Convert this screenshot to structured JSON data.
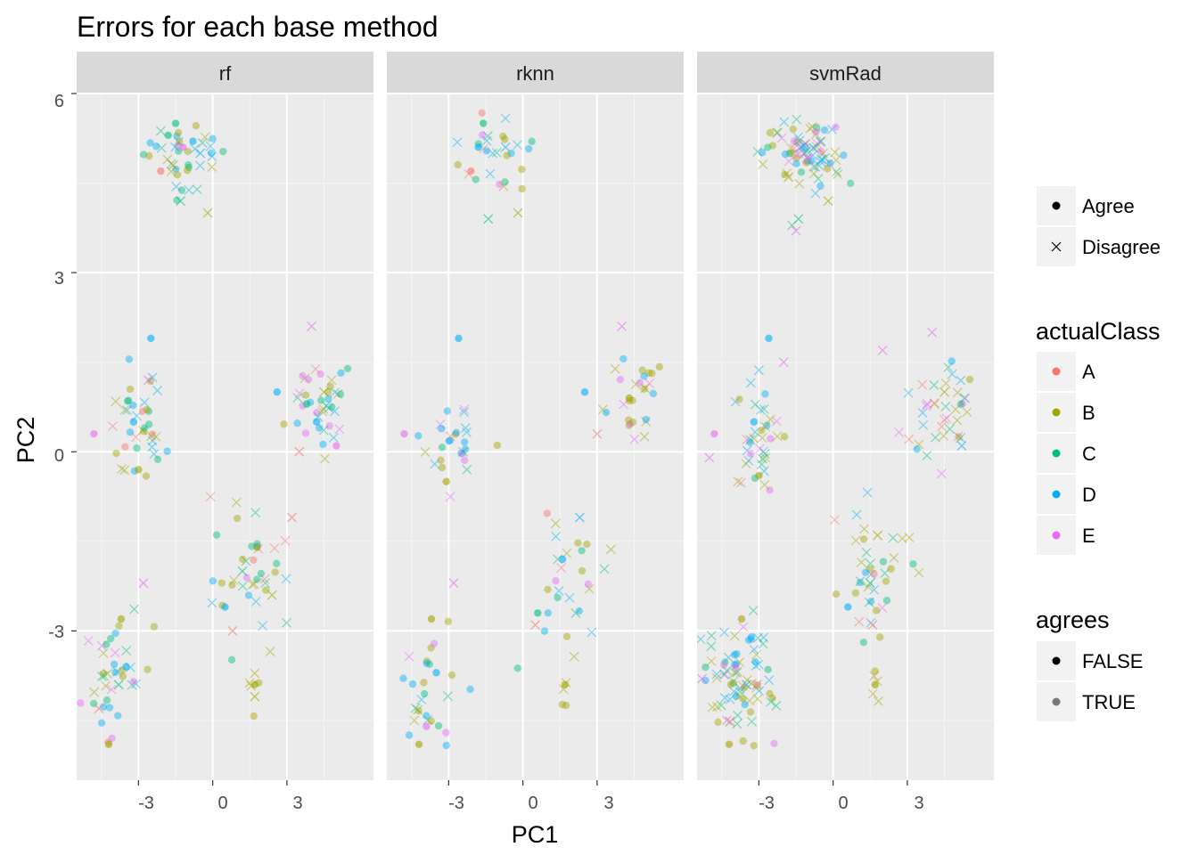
{
  "chart_data": {
    "type": "scatter",
    "title": "Errors for each base method",
    "xlabel": "PC1",
    "ylabel": "PC2",
    "xlim": [
      -5.5,
      6.5
    ],
    "ylim": [
      -5.5,
      6
    ],
    "x_ticks": [
      -3,
      0,
      3
    ],
    "x_tick_labels": [
      "-3",
      "0",
      "3"
    ],
    "y_ticks": [
      -3,
      0,
      3,
      6
    ],
    "y_tick_labels": [
      "-3",
      "0",
      "3",
      "6"
    ],
    "grid": true,
    "legend_position": "right",
    "facets": [
      "rf",
      "rknn",
      "svmRad"
    ],
    "legends": {
      "shape": {
        "title": "",
        "entries": [
          {
            "label": "Agree",
            "shape": "circle"
          },
          {
            "label": "Disagree",
            "shape": "cross"
          }
        ]
      },
      "actualClass": {
        "title": "actualClass",
        "entries": [
          {
            "label": "A",
            "color": "#F8766D"
          },
          {
            "label": "B",
            "color": "#A3A500"
          },
          {
            "label": "C",
            "color": "#00BF7D"
          },
          {
            "label": "D",
            "color": "#00B0F6"
          },
          {
            "label": "E",
            "color": "#E76BF3"
          }
        ]
      },
      "agrees": {
        "title": "agrees",
        "entries": [
          {
            "label": "FALSE",
            "alpha": 1.0
          },
          {
            "label": "TRUE",
            "alpha": 0.5
          }
        ]
      }
    },
    "clusters": [
      {
        "cx": -1.2,
        "cy": 5.0,
        "sx": 0.8,
        "sy": 0.3,
        "mix": {
          "A": 0.05,
          "B": 0.3,
          "C": 0.2,
          "D": 0.35,
          "E": 0.1
        }
      },
      {
        "cx": -3.0,
        "cy": 0.3,
        "sx": 0.6,
        "sy": 0.5,
        "mix": {
          "A": 0.05,
          "B": 0.4,
          "C": 0.15,
          "D": 0.3,
          "E": 0.1
        }
      },
      {
        "cx": 4.4,
        "cy": 0.8,
        "sx": 0.7,
        "sy": 0.4,
        "mix": {
          "A": 0.1,
          "B": 0.35,
          "C": 0.15,
          "D": 0.25,
          "E": 0.15
        }
      },
      {
        "cx": 1.6,
        "cy": -2.1,
        "sx": 0.8,
        "sy": 0.6,
        "mix": {
          "A": 0.1,
          "B": 0.3,
          "C": 0.3,
          "D": 0.25,
          "E": 0.05
        }
      },
      {
        "cx": -3.8,
        "cy": -3.8,
        "sx": 0.7,
        "sy": 0.5,
        "mix": {
          "A": 0.05,
          "B": 0.35,
          "C": 0.15,
          "D": 0.35,
          "E": 0.1
        }
      },
      {
        "cx": 1.7,
        "cy": -3.9,
        "sx": 0.1,
        "sy": 0.2,
        "mix": {
          "B": 1.0
        }
      }
    ],
    "series": [
      {
        "facet": "rf",
        "points": [
          {
            "x": -1.8,
            "y": 5.3,
            "class": "C",
            "shape": "Agree"
          },
          {
            "x": -1.5,
            "y": 5.5,
            "class": "C",
            "shape": "Agree"
          },
          {
            "x": -0.8,
            "y": 5.2,
            "class": "D",
            "shape": "Agree"
          },
          {
            "x": -0.5,
            "y": 5.0,
            "class": "D",
            "shape": "Disagree"
          },
          {
            "x": -1.6,
            "y": 4.8,
            "class": "B",
            "shape": "Disagree"
          },
          {
            "x": -1.2,
            "y": 5.1,
            "class": "E",
            "shape": "Agree"
          },
          {
            "x": -2.1,
            "y": 4.7,
            "class": "A",
            "shape": "Agree"
          },
          {
            "x": -1.3,
            "y": 4.2,
            "class": "C",
            "shape": "Disagree"
          },
          {
            "x": -0.2,
            "y": 4.0,
            "class": "B",
            "shape": "Disagree"
          },
          {
            "x": -2.5,
            "y": 1.9,
            "class": "D",
            "shape": "Agree"
          },
          {
            "x": -3.2,
            "y": 0.5,
            "class": "D",
            "shape": "Agree"
          },
          {
            "x": -3.0,
            "y": -0.3,
            "class": "B",
            "shape": "Agree"
          },
          {
            "x": -4.8,
            "y": 0.3,
            "class": "E",
            "shape": "Agree"
          },
          {
            "x": -2.6,
            "y": 1.2,
            "class": "E",
            "shape": "Disagree"
          },
          {
            "x": 4.0,
            "y": 2.1,
            "class": "E",
            "shape": "Disagree"
          },
          {
            "x": 4.5,
            "y": 1.0,
            "class": "B",
            "shape": "Disagree"
          },
          {
            "x": 3.8,
            "y": 0.8,
            "class": "C",
            "shape": "Agree"
          },
          {
            "x": 4.2,
            "y": 0.5,
            "class": "D",
            "shape": "Agree"
          },
          {
            "x": 3.5,
            "y": 0.0,
            "class": "A",
            "shape": "Disagree"
          },
          {
            "x": 5.0,
            "y": 0.1,
            "class": "E",
            "shape": "Agree"
          },
          {
            "x": 2.6,
            "y": 1.0,
            "class": "D",
            "shape": "Agree"
          },
          {
            "x": 1.2,
            "y": -2.0,
            "class": "C",
            "shape": "Disagree"
          },
          {
            "x": 1.8,
            "y": -1.6,
            "class": "B",
            "shape": "Agree"
          },
          {
            "x": 0.5,
            "y": -2.6,
            "class": "D",
            "shape": "Agree"
          },
          {
            "x": 2.4,
            "y": -2.4,
            "class": "B",
            "shape": "Disagree"
          },
          {
            "x": 3.2,
            "y": -1.1,
            "class": "A",
            "shape": "Disagree"
          },
          {
            "x": 0.8,
            "y": -3.0,
            "class": "A",
            "shape": "Disagree"
          },
          {
            "x": -3.5,
            "y": -3.6,
            "class": "D",
            "shape": "Agree"
          },
          {
            "x": -3.8,
            "y": -3.9,
            "class": "C",
            "shape": "Disagree"
          },
          {
            "x": -3.7,
            "y": -2.8,
            "class": "B",
            "shape": "Agree"
          },
          {
            "x": -4.2,
            "y": -4.9,
            "class": "B",
            "shape": "Agree"
          },
          {
            "x": -4.6,
            "y": -4.3,
            "class": "A",
            "shape": "Disagree"
          },
          {
            "x": -2.8,
            "y": -2.2,
            "class": "E",
            "shape": "Disagree"
          },
          {
            "x": 1.7,
            "y": -3.9,
            "class": "B",
            "shape": "Agree"
          },
          {
            "x": 1.7,
            "y": -4.1,
            "class": "B",
            "shape": "Disagree"
          }
        ]
      },
      {
        "facet": "rknn",
        "points": [
          {
            "x": -1.8,
            "y": 5.1,
            "class": "D",
            "shape": "Agree"
          },
          {
            "x": -1.6,
            "y": 5.5,
            "class": "C",
            "shape": "Agree"
          },
          {
            "x": -0.7,
            "y": 5.1,
            "class": "D",
            "shape": "Disagree"
          },
          {
            "x": -2.1,
            "y": 4.7,
            "class": "A",
            "shape": "Agree"
          },
          {
            "x": -1.4,
            "y": 3.9,
            "class": "C",
            "shape": "Disagree"
          },
          {
            "x": -0.2,
            "y": 4.0,
            "class": "B",
            "shape": "Disagree"
          },
          {
            "x": -2.6,
            "y": 1.9,
            "class": "D",
            "shape": "Agree"
          },
          {
            "x": -3.1,
            "y": -0.5,
            "class": "B",
            "shape": "Agree"
          },
          {
            "x": -4.8,
            "y": 0.3,
            "class": "E",
            "shape": "Agree"
          },
          {
            "x": 4.0,
            "y": 2.1,
            "class": "E",
            "shape": "Disagree"
          },
          {
            "x": 4.3,
            "y": 0.9,
            "class": "B",
            "shape": "Agree"
          },
          {
            "x": 2.5,
            "y": 1.0,
            "class": "D",
            "shape": "Agree"
          },
          {
            "x": 3.0,
            "y": 0.3,
            "class": "A",
            "shape": "Disagree"
          },
          {
            "x": 1.6,
            "y": -1.8,
            "class": "D",
            "shape": "Agree"
          },
          {
            "x": 0.6,
            "y": -2.7,
            "class": "C",
            "shape": "Agree"
          },
          {
            "x": 2.3,
            "y": -1.1,
            "class": "D",
            "shape": "Disagree"
          },
          {
            "x": 0.5,
            "y": -2.9,
            "class": "A",
            "shape": "Disagree"
          },
          {
            "x": -3.5,
            "y": -3.7,
            "class": "D",
            "shape": "Agree"
          },
          {
            "x": -3.7,
            "y": -2.8,
            "class": "B",
            "shape": "Agree"
          },
          {
            "x": -4.2,
            "y": -4.9,
            "class": "B",
            "shape": "Agree"
          },
          {
            "x": -3.9,
            "y": -4.6,
            "class": "E",
            "shape": "Agree"
          },
          {
            "x": -2.8,
            "y": -2.2,
            "class": "E",
            "shape": "Disagree"
          },
          {
            "x": 1.7,
            "y": -3.9,
            "class": "B",
            "shape": "Agree"
          }
        ]
      },
      {
        "facet": "svmRad",
        "points": [
          {
            "x": -1.3,
            "y": 5.1,
            "class": "D",
            "shape": "Disagree"
          },
          {
            "x": -1.0,
            "y": 4.9,
            "class": "E",
            "shape": "Disagree"
          },
          {
            "x": -0.5,
            "y": 5.2,
            "class": "C",
            "shape": "Disagree"
          },
          {
            "x": -1.8,
            "y": 4.6,
            "class": "B",
            "shape": "Disagree"
          },
          {
            "x": -1.5,
            "y": 3.7,
            "class": "E",
            "shape": "Disagree"
          },
          {
            "x": -1.4,
            "y": 3.9,
            "class": "C",
            "shape": "Disagree"
          },
          {
            "x": -0.2,
            "y": 4.2,
            "class": "B",
            "shape": "Disagree"
          },
          {
            "x": -2.6,
            "y": 1.9,
            "class": "D",
            "shape": "Agree"
          },
          {
            "x": -3.2,
            "y": 0.5,
            "class": "D",
            "shape": "Agree"
          },
          {
            "x": -3.0,
            "y": -0.4,
            "class": "B",
            "shape": "Agree"
          },
          {
            "x": -4.8,
            "y": 0.3,
            "class": "E",
            "shape": "Agree"
          },
          {
            "x": -5.0,
            "y": -0.1,
            "class": "E",
            "shape": "Disagree"
          },
          {
            "x": -2.0,
            "y": 1.5,
            "class": "E",
            "shape": "Disagree"
          },
          {
            "x": 4.0,
            "y": 2.0,
            "class": "E",
            "shape": "Disagree"
          },
          {
            "x": 3.8,
            "y": 0.8,
            "class": "E",
            "shape": "Disagree"
          },
          {
            "x": 4.5,
            "y": 1.0,
            "class": "B",
            "shape": "Disagree"
          },
          {
            "x": 2.0,
            "y": 1.7,
            "class": "E",
            "shape": "Disagree"
          },
          {
            "x": 5.2,
            "y": 0.1,
            "class": "D",
            "shape": "Disagree"
          },
          {
            "x": 1.8,
            "y": -1.4,
            "class": "B",
            "shape": "Disagree"
          },
          {
            "x": 1.5,
            "y": -2.2,
            "class": "C",
            "shape": "Disagree"
          },
          {
            "x": 0.6,
            "y": -2.6,
            "class": "D",
            "shape": "Agree"
          },
          {
            "x": 1.6,
            "y": -2.9,
            "class": "A",
            "shape": "Disagree"
          },
          {
            "x": -3.5,
            "y": -3.9,
            "class": "D",
            "shape": "Disagree"
          },
          {
            "x": -3.7,
            "y": -2.8,
            "class": "B",
            "shape": "Agree"
          },
          {
            "x": -4.2,
            "y": -4.9,
            "class": "B",
            "shape": "Agree"
          },
          {
            "x": -4.3,
            "y": -4.5,
            "class": "E",
            "shape": "Disagree"
          },
          {
            "x": -5.3,
            "y": -3.8,
            "class": "E",
            "shape": "Disagree"
          },
          {
            "x": 1.7,
            "y": -3.9,
            "class": "B",
            "shape": "Agree"
          }
        ]
      }
    ]
  }
}
